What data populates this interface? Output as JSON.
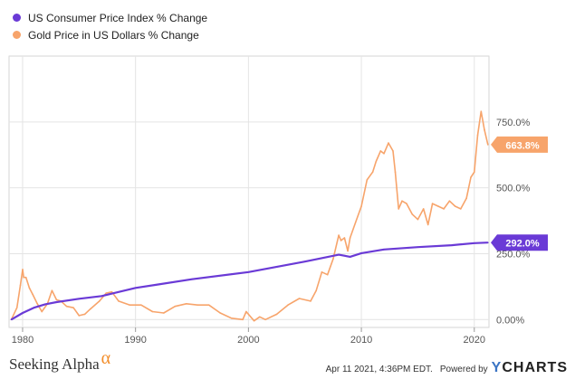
{
  "legend": [
    {
      "label": "US Consumer Price Index % Change",
      "color": "#6a3ad6"
    },
    {
      "label": "Gold Price in US Dollars % Change",
      "color": "#f7a46b"
    }
  ],
  "footer": {
    "brand": "Seeking Alpha",
    "brand_mark": "α",
    "timestamp": "Apr 11 2021, 4:36PM EDT.",
    "powered_by": "Powered by",
    "provider_y": "Y",
    "provider_rest": "CHARTS"
  },
  "chart_data": {
    "type": "line",
    "x_ticks": [
      "1980",
      "1990",
      "2000",
      "2010",
      "2020"
    ],
    "y_ticks": [
      "0.00%",
      "250.0%",
      "500.0%",
      "750.0%"
    ],
    "xlim": [
      1978.8,
      2021.3
    ],
    "ylim": [
      -30,
      1000
    ],
    "grid": true,
    "series": [
      {
        "name": "US Consumer Price Index % Change",
        "color": "#6a3ad6",
        "end_label": "292.0%",
        "x": [
          1979.0,
          1980.0,
          1981.0,
          1982.0,
          1983.0,
          1985.0,
          1987.0,
          1990.0,
          1992.0,
          1995.0,
          2000.0,
          2005.0,
          2008.0,
          2009.0,
          2010.0,
          2012.0,
          2015.0,
          2018.0,
          2020.0,
          2021.2
        ],
        "values": [
          0,
          25,
          45,
          58,
          66,
          79,
          89,
          120,
          133,
          153,
          180,
          220,
          246,
          238,
          252,
          266,
          275,
          282,
          290,
          292
        ]
      },
      {
        "name": "Gold Price in US Dollars % Change",
        "color": "#f7a46b",
        "end_label": "663.8%",
        "x": [
          1979.0,
          1979.5,
          1979.8,
          1980.0,
          1980.1,
          1980.3,
          1980.6,
          1980.9,
          1981.3,
          1981.7,
          1982.2,
          1982.6,
          1983.0,
          1983.4,
          1983.9,
          1984.5,
          1985.0,
          1985.5,
          1986.0,
          1986.8,
          1987.4,
          1987.9,
          1988.5,
          1989.5,
          1990.5,
          1991.5,
          1992.5,
          1993.5,
          1994.5,
          1995.5,
          1996.5,
          1997.5,
          1998.5,
          1999.5,
          1999.8,
          2000.5,
          2001.0,
          2001.5,
          2002.5,
          2003.5,
          2004.5,
          2005.5,
          2006.0,
          2006.5,
          2007.0,
          2007.5,
          2008.0,
          2008.2,
          2008.5,
          2008.8,
          2009.0,
          2009.5,
          2010.0,
          2010.5,
          2011.0,
          2011.3,
          2011.7,
          2012.0,
          2012.4,
          2012.8,
          2013.0,
          2013.3,
          2013.6,
          2014.0,
          2014.5,
          2015.0,
          2015.5,
          2015.9,
          2016.3,
          2016.8,
          2017.3,
          2017.8,
          2018.3,
          2018.8,
          2019.3,
          2019.7,
          2020.0,
          2020.3,
          2020.6,
          2020.9,
          2021.2
        ],
        "values": [
          0,
          45,
          130,
          190,
          160,
          160,
          120,
          95,
          60,
          30,
          60,
          110,
          75,
          70,
          50,
          45,
          15,
          20,
          40,
          70,
          100,
          105,
          70,
          55,
          55,
          30,
          25,
          50,
          60,
          55,
          55,
          25,
          5,
          0,
          30,
          -5,
          10,
          0,
          20,
          55,
          80,
          70,
          110,
          180,
          170,
          230,
          320,
          300,
          310,
          260,
          310,
          370,
          430,
          530,
          560,
          600,
          640,
          630,
          670,
          640,
          560,
          420,
          450,
          440,
          400,
          380,
          420,
          360,
          440,
          430,
          420,
          450,
          430,
          420,
          460,
          540,
          560,
          700,
          790,
          720,
          663.8
        ]
      }
    ]
  }
}
